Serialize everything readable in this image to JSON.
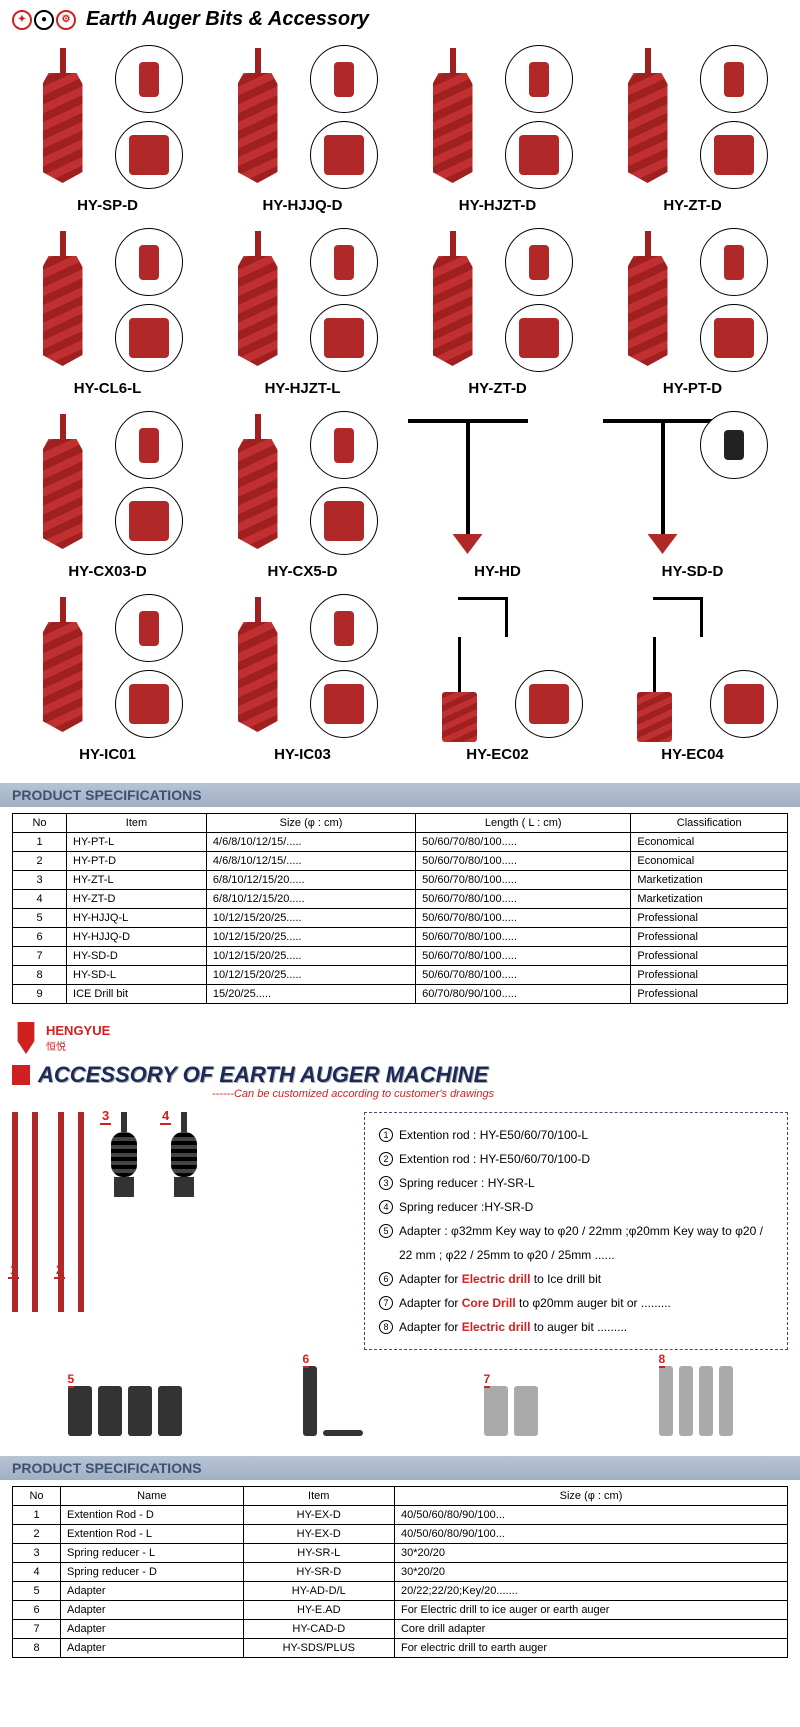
{
  "header": {
    "title": "Earth Auger Bits  & Accessory"
  },
  "products": [
    {
      "name": "HY-SP-D",
      "style": "auger"
    },
    {
      "name": "HY-HJJQ-D",
      "style": "auger"
    },
    {
      "name": "HY-HJZT-D",
      "style": "auger"
    },
    {
      "name": "HY-ZT-D",
      "style": "auger"
    },
    {
      "name": "HY-CL6-L",
      "style": "auger"
    },
    {
      "name": "HY-HJZT-L",
      "style": "auger"
    },
    {
      "name": "HY-ZT-D",
      "style": "auger"
    },
    {
      "name": "HY-PT-D",
      "style": "auger"
    },
    {
      "name": "HY-CX03-D",
      "style": "auger"
    },
    {
      "name": "HY-CX5-D",
      "style": "auger"
    },
    {
      "name": "HY-HD",
      "style": "handle"
    },
    {
      "name": "HY-SD-D",
      "style": "handle2"
    },
    {
      "name": "HY-IC01",
      "style": "auger"
    },
    {
      "name": "HY-IC03",
      "style": "auger"
    },
    {
      "name": "HY-EC02",
      "style": "ice"
    },
    {
      "name": "HY-EC04",
      "style": "ice"
    }
  ],
  "spec1": {
    "title": "PRODUCT SPECIFICATIONS",
    "headers": [
      "No",
      "Item",
      "Size  (φ : cm)",
      "Length  ( L : cm)",
      "Classification"
    ],
    "rows": [
      [
        "1",
        "HY-PT-L",
        "4/6/8/10/12/15/.....",
        "50/60/70/80/100.....",
        "Economical"
      ],
      [
        "2",
        "HY-PT-D",
        "4/6/8/10/12/15/.....",
        "50/60/70/80/100.....",
        "Economical"
      ],
      [
        "3",
        "HY-ZT-L",
        "6/8/10/12/15/20.....",
        "50/60/70/80/100.....",
        "Marketization"
      ],
      [
        "4",
        "HY-ZT-D",
        "6/8/10/12/15/20.....",
        "50/60/70/80/100.....",
        "Marketization"
      ],
      [
        "5",
        "HY-HJJQ-L",
        "10/12/15/20/25.....",
        "50/60/70/80/100.....",
        "Professional"
      ],
      [
        "6",
        "HY-HJJQ-D",
        "10/12/15/20/25.....",
        "50/60/70/80/100.....",
        "Professional"
      ],
      [
        "7",
        "HY-SD-D",
        "10/12/15/20/25.....",
        "50/60/70/80/100.....",
        "Professional"
      ],
      [
        "8",
        "HY-SD-L",
        "10/12/15/20/25.....",
        "50/60/70/80/100.....",
        "Professional"
      ],
      [
        "9",
        "ICE Drill bit",
        "15/20/25.....",
        "60/70/80/90/100.....",
        "Professional"
      ]
    ]
  },
  "accessory": {
    "brand": "HENGYUE",
    "brand_cn": "恒悦",
    "title": "ACCESSORY OF EARTH AUGER MACHINE",
    "subtitle": "------Can be customized according to customer's drawings",
    "items": [
      {
        "num": "1",
        "text": "Extention rod :  HY-E50/60/70/100-L"
      },
      {
        "num": "2",
        "text": "Extention rod :  HY-E50/60/70/100-D"
      },
      {
        "num": "3",
        "text": "Spring reducer : HY-SR-L"
      },
      {
        "num": "4",
        "text": "Spring reducer :HY-SR-D"
      },
      {
        "num": "5",
        "text": "Adapter : φ32mm Key way to φ20 / 22mm ;φ20mm Key way to φ20 / 22 mm ; φ22 / 25mm to φ20 / 25mm ......"
      },
      {
        "num": "6",
        "html": "Adapter for <span class='red-text'>Electric drill</span>  to Ice drill bit"
      },
      {
        "num": "7",
        "html": "Adapter for <span class='red-text'>Core Drill</span> to φ20mm auger bit or ........."
      },
      {
        "num": "8",
        "html": "Adapter for <span class='red-text'>Electric drill</span>  to auger bit ........."
      }
    ]
  },
  "spec2": {
    "title": "PRODUCT SPECIFICATIONS",
    "headers": [
      "No",
      "Name",
      "Item",
      "Size  (φ : cm)"
    ],
    "rows": [
      [
        "1",
        "Extention Rod - D",
        "HY-EX-D",
        "40/50/60/80/90/100..."
      ],
      [
        "2",
        "Extention Rod - L",
        "HY-EX-D",
        "40/50/60/80/90/100..."
      ],
      [
        "3",
        "Spring reducer - L",
        "HY-SR-L",
        "30*20/20"
      ],
      [
        "4",
        "Spring reducer - D",
        "HY-SR-D",
        "30*20/20"
      ],
      [
        "5",
        "Adapter",
        "HY-AD-D/L",
        "20/22;22/20;Key/20......."
      ],
      [
        "6",
        "Adapter",
        "HY-E.AD",
        "For Electric drill to ice auger or earth auger"
      ],
      [
        "7",
        "Adapter",
        "HY-CAD-D",
        "Core drill adapter"
      ],
      [
        "8",
        "Adapter",
        "HY-SDS/PLUS",
        "For electric drill to earth auger"
      ]
    ]
  },
  "colors": {
    "auger_red": "#b02828",
    "accent_red": "#d02020",
    "header_bg": "#a8b8cc",
    "header_text": "#405070"
  }
}
